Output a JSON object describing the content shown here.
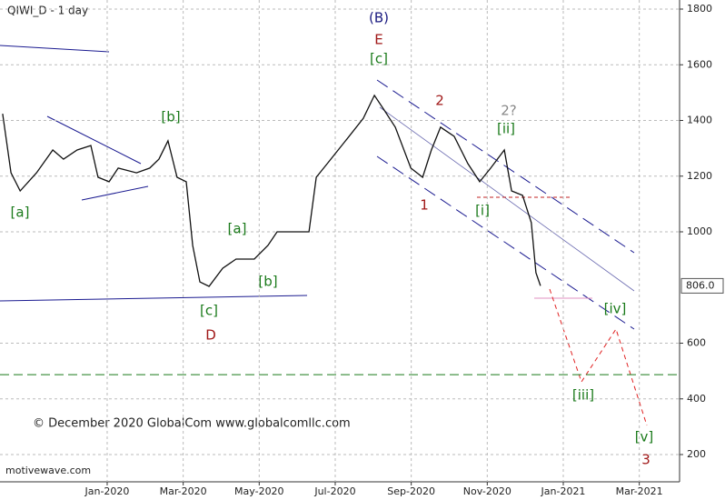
{
  "chart_data": {
    "type": "line",
    "title": "QIWI_D - 1 day",
    "copyright": "© December 2020 GlobalCom www.globalcomllc.com",
    "watermark": "motivewave.com",
    "color": "#111111",
    "grid": true,
    "x": [
      -2.75,
      -2.53,
      -2.29,
      -1.86,
      -1.43,
      -1.15,
      -0.79,
      -0.43,
      -0.24,
      0.05,
      0.29,
      0.77,
      1.12,
      1.36,
      1.6,
      1.84,
      2.08,
      2.25,
      2.44,
      2.68,
      3.04,
      3.39,
      3.87,
      4.23,
      4.47,
      4.83,
      5.31,
      5.5,
      5.79,
      6.27,
      6.74,
      7.03,
      7.27,
      7.58,
      7.99,
      8.3,
      8.53,
      8.77,
      9.13,
      9.49,
      9.8,
      10.09,
      10.45,
      10.64,
      10.93,
      11.16,
      11.28,
      11.4
    ],
    "values": [
      1424,
      1212,
      1147,
      1212,
      1294,
      1261,
      1294,
      1310,
      1196,
      1180,
      1229,
      1212,
      1229,
      1261,
      1327,
      1196,
      1180,
      951,
      820,
      804,
      869,
      902,
      902,
      951,
      1000,
      1000,
      1000,
      1196,
      1245,
      1327,
      1408,
      1490,
      1441,
      1376,
      1229,
      1196,
      1294,
      1376,
      1343,
      1245,
      1180,
      1229,
      1294,
      1147,
      1131,
      1033,
      853,
      806
    ],
    "xlim": [
      -2.82,
      15.06
    ],
    "xticks": [
      {
        "value": 0,
        "label": "Jan-2020"
      },
      {
        "value": 2,
        "label": "Mar-2020"
      },
      {
        "value": 4,
        "label": "May-2020"
      },
      {
        "value": 6,
        "label": "Jul-2020"
      },
      {
        "value": 8,
        "label": "Sep-2020"
      },
      {
        "value": 10,
        "label": "Nov-2020"
      },
      {
        "value": 12,
        "label": "Jan-2021"
      },
      {
        "value": 14,
        "label": "Mar-2021"
      }
    ],
    "ylim": [
      200,
      1800
    ],
    "yticks": [
      200,
      400,
      600,
      806,
      1000,
      1200,
      1400,
      1600,
      1800
    ],
    "price_marker": {
      "value": 806,
      "label": "806.0"
    },
    "level_line": 487,
    "annotations": [
      {
        "text": "(B)",
        "color": "#1a1a80"
      },
      {
        "text": "E",
        "color": "#a01818"
      },
      {
        "text": "[c]",
        "color": "#1a7a1a"
      },
      {
        "text": "[b]",
        "color": "#1a7a1a"
      },
      {
        "text": "[a]",
        "color": "#1a7a1a"
      },
      {
        "text": "[c]",
        "color": "#1a7a1a"
      },
      {
        "text": "D",
        "color": "#a01818"
      },
      {
        "text": "[a]",
        "color": "#1a7a1a"
      },
      {
        "text": "[b]",
        "color": "#1a7a1a"
      },
      {
        "text": "1",
        "color": "#a01818"
      },
      {
        "text": "2",
        "color": "#a01818"
      },
      {
        "text": "[i]",
        "color": "#1a7a1a"
      },
      {
        "text": "2?",
        "color": "#888888"
      },
      {
        "text": "[ii]",
        "color": "#1a7a1a"
      },
      {
        "text": "[iv]",
        "color": "#1a7a1a"
      },
      {
        "text": "[iii]",
        "color": "#1a7a1a"
      },
      {
        "text": "[v]",
        "color": "#1a7a1a"
      },
      {
        "text": "3",
        "color": "#a01818"
      }
    ]
  }
}
